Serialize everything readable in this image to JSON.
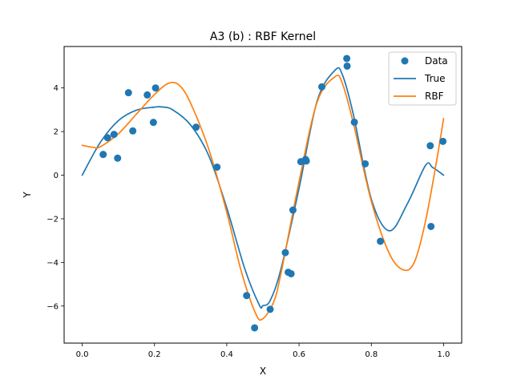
{
  "chart_data": {
    "type": "scatter",
    "title": "A3 (b) : RBF Kernel",
    "xlabel": "X",
    "ylabel": "Y",
    "xlim": [
      -0.05,
      1.05
    ],
    "ylim": [
      -7.7,
      5.9
    ],
    "xticks": [
      0.0,
      0.2,
      0.4,
      0.6,
      0.8,
      1.0
    ],
    "xtick_labels": [
      "0.0",
      "0.2",
      "0.4",
      "0.6",
      "0.8",
      "1.0"
    ],
    "yticks": [
      -6,
      -4,
      -2,
      0,
      2,
      4
    ],
    "ytick_labels": [
      "−6",
      "−4",
      "−2",
      "0",
      "2",
      "4"
    ],
    "grid": false,
    "legend_position": "top-right",
    "colors": {
      "data": "#1f77b4",
      "true": "#1f77b4",
      "rbf": "#ff7f0e"
    },
    "series": [
      {
        "name": "Data",
        "kind": "scatter",
        "points": [
          [
            0.058,
            0.95
          ],
          [
            0.07,
            1.72
          ],
          [
            0.088,
            1.87
          ],
          [
            0.098,
            0.78
          ],
          [
            0.128,
            3.78
          ],
          [
            0.14,
            2.03
          ],
          [
            0.18,
            3.68
          ],
          [
            0.197,
            2.42
          ],
          [
            0.203,
            4.0
          ],
          [
            0.315,
            2.2
          ],
          [
            0.373,
            0.37
          ],
          [
            0.455,
            -5.52
          ],
          [
            0.477,
            -7.0
          ],
          [
            0.52,
            -6.15
          ],
          [
            0.562,
            -3.55
          ],
          [
            0.57,
            -4.45
          ],
          [
            0.578,
            -4.52
          ],
          [
            0.583,
            -1.6
          ],
          [
            0.605,
            0.62
          ],
          [
            0.618,
            0.72
          ],
          [
            0.62,
            0.65
          ],
          [
            0.663,
            4.05
          ],
          [
            0.732,
            5.35
          ],
          [
            0.733,
            5.0
          ],
          [
            0.753,
            2.43
          ],
          [
            0.783,
            0.52
          ],
          [
            0.825,
            -3.03
          ],
          [
            0.963,
            1.35
          ],
          [
            0.965,
            -2.35
          ],
          [
            0.998,
            1.55
          ]
        ]
      },
      {
        "name": "True",
        "kind": "line",
        "points": [
          [
            0.0,
            0.0
          ],
          [
            0.05,
            1.5
          ],
          [
            0.1,
            2.5
          ],
          [
            0.15,
            2.98
          ],
          [
            0.2,
            3.12
          ],
          [
            0.22,
            3.13
          ],
          [
            0.25,
            3.0
          ],
          [
            0.3,
            2.3
          ],
          [
            0.35,
            0.9
          ],
          [
            0.4,
            -1.5
          ],
          [
            0.45,
            -4.3
          ],
          [
            0.49,
            -5.95
          ],
          [
            0.5,
            -5.98
          ],
          [
            0.52,
            -5.75
          ],
          [
            0.55,
            -4.3
          ],
          [
            0.6,
            -0.6
          ],
          [
            0.65,
            3.4
          ],
          [
            0.7,
            4.82
          ],
          [
            0.72,
            4.6
          ],
          [
            0.75,
            2.8
          ],
          [
            0.8,
            -1.1
          ],
          [
            0.85,
            -2.55
          ],
          [
            0.9,
            -1.3
          ],
          [
            0.95,
            0.45
          ],
          [
            0.97,
            0.35
          ],
          [
            1.0,
            0.0
          ]
        ]
      },
      {
        "name": "RBF",
        "kind": "line",
        "points": [
          [
            0.0,
            1.37
          ],
          [
            0.03,
            1.28
          ],
          [
            0.05,
            1.3
          ],
          [
            0.1,
            1.9
          ],
          [
            0.15,
            2.8
          ],
          [
            0.2,
            3.7
          ],
          [
            0.24,
            4.22
          ],
          [
            0.27,
            4.1
          ],
          [
            0.3,
            3.3
          ],
          [
            0.35,
            1.2
          ],
          [
            0.4,
            -1.7
          ],
          [
            0.44,
            -4.4
          ],
          [
            0.48,
            -6.35
          ],
          [
            0.5,
            -6.58
          ],
          [
            0.53,
            -5.8
          ],
          [
            0.55,
            -4.5
          ],
          [
            0.6,
            -0.3
          ],
          [
            0.65,
            3.35
          ],
          [
            0.7,
            4.52
          ],
          [
            0.72,
            4.2
          ],
          [
            0.75,
            2.4
          ],
          [
            0.8,
            -1.2
          ],
          [
            0.85,
            -3.6
          ],
          [
            0.89,
            -4.35
          ],
          [
            0.92,
            -3.95
          ],
          [
            0.95,
            -2.1
          ],
          [
            0.98,
            0.6
          ],
          [
            1.0,
            2.6
          ]
        ]
      }
    ]
  }
}
